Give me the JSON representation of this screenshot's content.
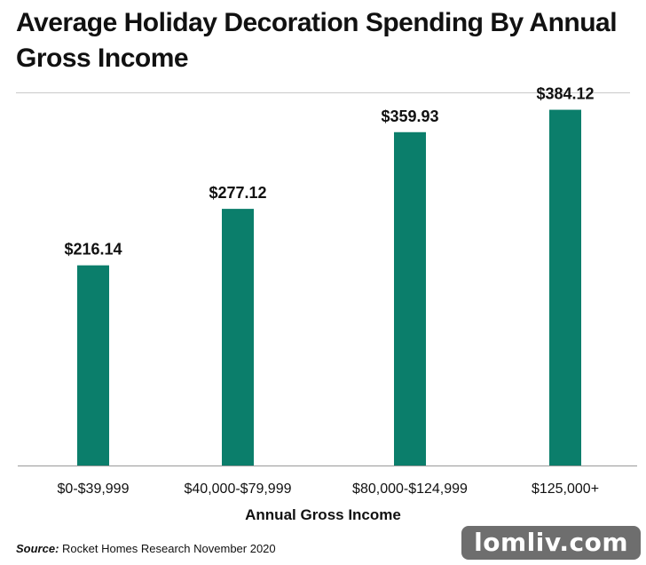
{
  "chart_data": {
    "type": "bar",
    "title": "Average Holiday Decoration Spending By Annual Gross Income",
    "xlabel": "Annual Gross Income",
    "ylabel": "",
    "categories": [
      "$0-$39,999",
      "$40,000-$79,999",
      "$80,000-$124,999",
      "$125,000+"
    ],
    "values": [
      216.14,
      277.12,
      359.93,
      384.12
    ],
    "value_labels": [
      "$216.14",
      "$277.12",
      "$359.93",
      "$384.12"
    ],
    "ylim": [
      0,
      400
    ],
    "grid": false,
    "bar_color": "#0b7e6b"
  },
  "source": {
    "key": "Source:",
    "text": "Rocket Homes Research November 2020"
  },
  "watermark": "lomliv.com"
}
